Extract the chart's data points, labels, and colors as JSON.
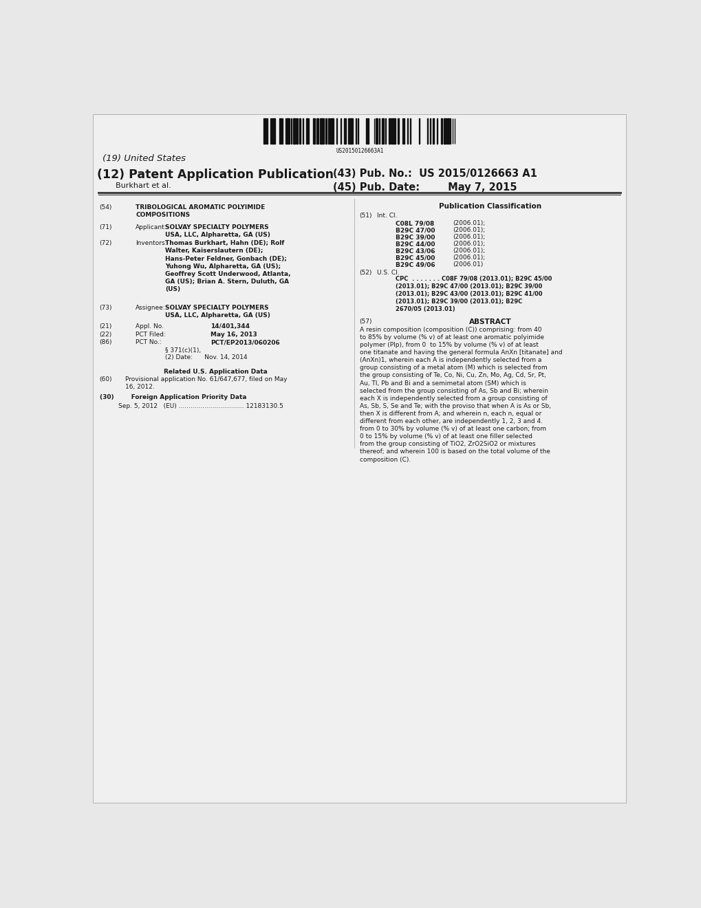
{
  "background_color": "#e8e8e8",
  "page_bg": "#d4d4d4",
  "barcode_text": "US20150126663A1",
  "header_left_line1": "(19) United States",
  "header_left_line2": "(12) Patent Application Publication",
  "header_left_line3": "Burkhart et al.",
  "header_right_line1": "(43) Pub. No.:  US 2015/0126663 A1",
  "header_right_line2": "(45) Pub. Date:        May 7, 2015",
  "title_label": "(54)",
  "title_text": "TRIBOLOGICAL AROMATIC POLYIMIDE\nCOMPOSITIONS",
  "applicant_label": "(71)",
  "applicant_title": "Applicant:",
  "applicant_text": "SOLVAY SPECIALTY POLYMERS\nUSA, LLC, Alpharetta, GA (US)",
  "inventor_label": "(72)",
  "inventor_title": "Inventors:",
  "inventor_text": "Thomas Burkhart, Hahn (DE); Rolf\nWalter, Kaiserslautern (DE);\nHans-Peter Feldner, Gonbach (DE);\nYuhong Wu, Alpharetta, GA (US);\nGeoffrey Scott Underwood, Atlanta,\nGA (US); Brian A. Stern, Duluth, GA\n(US)",
  "assignee_label": "(73)",
  "assignee_title": "Assignee:",
  "assignee_text": "SOLVAY SPECIALTY POLYMERS\nUSA, LLC, Alpharetta, GA (US)",
  "appl_no_label": "(21)",
  "appl_no_title": "Appl. No.",
  "appl_no_text": "14/401,344",
  "pct_filed_label": "(22)",
  "pct_filed_title": "PCT Filed:",
  "pct_filed_text": "May 16, 2013",
  "pct_no_label": "(86)",
  "pct_no_title": "PCT No.:",
  "pct_no_text": "PCT/EP2013/060206",
  "pct_371_line1": "§ 371(c)(1),",
  "pct_371_line2": "(2) Date:      Nov. 14, 2014",
  "related_us_header": "Related U.S. Application Data",
  "provisional_label": "(60)",
  "provisional_text": "Provisional application No. 61/647,677, filed on May\n16, 2012.",
  "foreign_header": "(30)        Foreign Application Priority Data",
  "foreign_text": "Sep. 5, 2012   (EU) ................................. 12183130.5",
  "pub_class_header": "Publication Classification",
  "intcl_label": "(51)",
  "intcl_title": "Int. Cl.",
  "intcl_entries": [
    [
      "C08L 79/08",
      "(2006.01);"
    ],
    [
      "B29C 47/00",
      "(2006.01);"
    ],
    [
      "B29C 39/00",
      "(2006.01);"
    ],
    [
      "B29C 44/00",
      "(2006.01);"
    ],
    [
      "B29C 43/06",
      "(2006.01);"
    ],
    [
      "B29C 45/00",
      "(2006.01);"
    ],
    [
      "B29C 49/06",
      "(2006.01)"
    ]
  ],
  "uscl_label": "(52)",
  "uscl_title": "U.S. Cl.",
  "uscl_text": "CPC  . . . . . . . C08F 79/08 (2013.01); B29C 45/00\n(2013.01); B29C 47/00 (2013.01); B29C 39/00\n(2013.01); B29C 43/00 (2013.01); B29C 41/00\n(2013.01); B29C 39/00 (2013.01); B29C\n2670/05 (2013.01)",
  "abstract_label": "(57)",
  "abstract_title": "ABSTRACT",
  "abstract_text": "A resin composition (composition (C)) comprising: from 40\nto 85% by volume (% v) of at least one aromatic polyimide\npolymer (PIp), from 0  to 15% by volume (% v) of at least\none titanate and having the general formula AnXn [titanate] and\n(AnXn)1, wherein each A is independently selected from a\ngroup consisting of a metal atom (M) which is selected from\nthe group consisting of Te, Co, Ni, Cu, Zn, Mo, Ag, Cd, Sr, Pt,\nAu, Tl, Pb and Bi and a semimetal atom (SM) which is\nselected from the group consisting of As, Sb and Bi; wherein\neach X is independently selected from a group consisting of\nAs, Sb, S, Se and Te; with the proviso that when A is As or Sb,\nthen X is different from A; and wherein n, each n, equal or\ndifferent from each other, are independently 1, 2, 3 and 4.\nfrom 0 to 30% by volume (% v) of at least one carbon; from\n0 to 15% by volume (% v) of at least one filler selected\nfrom the group consisting of TiO2, ZrO2SiO2 or mixtures\nthereof; and wherein 100 is based on the total volume of the\ncomposition (C).",
  "fs_body": 6.5,
  "fs_small": 6.0,
  "fs_title_main": 12.5,
  "fs_pub_title": 10.5,
  "fs_header_sm": 7.5,
  "text_color": "#1a1a1a",
  "divider_color": "#333333"
}
